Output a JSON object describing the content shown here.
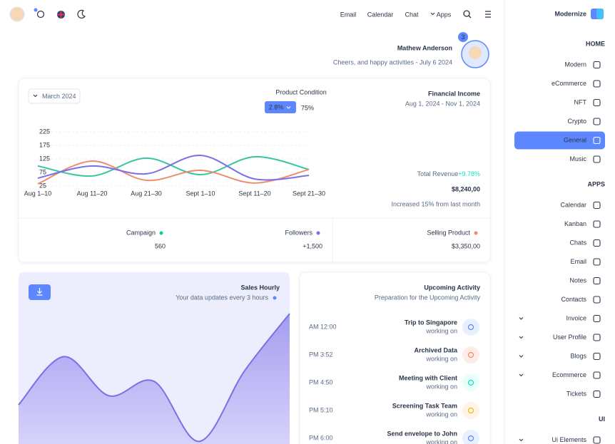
{
  "header": {
    "nav": [
      "Email",
      "Calendar",
      "Chat",
      "Apps"
    ]
  },
  "profile": {
    "name": "Mathew Anderson",
    "subtitle": "Cheers, and happy activities - July 6 2024",
    "badge": 3
  },
  "financial": {
    "date_filter": "March 2024",
    "condition_label": "Product Condition",
    "condition_change": "2.8%",
    "condition_value": "75%",
    "title": "Financial Income",
    "range": "Aug 1, 2024 - Nov 1, 2024",
    "revenue_label": "Total Revenue",
    "revenue_change": "+9.78%",
    "revenue": "$8,240,00",
    "revenue_note": "Increased 15% from last month",
    "chart": {
      "type": "line",
      "categories": [
        "Aug 1–10",
        "Aug 11–20",
        "Aug 21–30",
        "Sept 1–10",
        "Sept 11–20",
        "Sept 21–30"
      ],
      "series": [
        {
          "color": "#36c6a3",
          "values": [
            99,
            62,
            128,
            67,
            133,
            86
          ]
        },
        {
          "color": "#f08c6b",
          "values": [
            33,
            117,
            46,
            83,
            36,
            86
          ]
        },
        {
          "color": "#7b6fe8",
          "values": [
            54,
            99,
            70,
            138,
            51,
            64
          ]
        }
      ],
      "ylim": [
        25,
        225
      ],
      "yticks": [
        225,
        175,
        125,
        75,
        25
      ],
      "grid": true
    }
  },
  "stats": [
    {
      "label": "Campaign",
      "value": "560"
    },
    {
      "label": "Followers",
      "value": "+1,500"
    },
    {
      "label": "Selling Product",
      "value": "$3,350,00"
    }
  ],
  "sales": {
    "title": "Sales Hourly",
    "subtitle": "Your data updates every 3 hours",
    "chart": {
      "type": "area",
      "values": [
        30,
        67,
        37,
        48,
        2,
        56,
        100
      ],
      "ylim": [
        0,
        100
      ],
      "color": "#7a70e6"
    }
  },
  "activity": {
    "title": "Upcoming Activity",
    "subtitle": "Preparation for the Upcoming Activity",
    "items": [
      {
        "time": "AM 12:00",
        "title": "Trip to Singapore",
        "status": "working on"
      },
      {
        "time": "PM 3:52",
        "title": "Archived Data",
        "status": "working on"
      },
      {
        "time": "PM 4:50",
        "title": "Meeting with Client",
        "status": "working on"
      },
      {
        "time": "PM 5:10",
        "title": "Screening Task Team",
        "status": "working on"
      },
      {
        "time": "PM 6:00",
        "title": "Send envelope to John",
        "status": "working on"
      }
    ]
  },
  "sidebar": {
    "brand": "Modernize",
    "active": "General",
    "sections": [
      {
        "title": "HOME",
        "items": [
          "Modern",
          "eCommerce",
          "NFT",
          "Crypto",
          "General",
          "Music"
        ]
      },
      {
        "title": "APPS",
        "items": [
          "Calendar",
          "Kanban",
          "Chats",
          "Email",
          "Notes",
          "Contacts",
          "Invoice",
          "User Profile",
          "Blogs",
          "Ecommerce",
          "Tickets"
        ]
      },
      {
        "title": "UI",
        "items": [
          "Ui Elements"
        ]
      }
    ],
    "expandable": [
      "Invoice",
      "User Profile",
      "Blogs",
      "Ecommerce",
      "Ui Elements"
    ]
  }
}
